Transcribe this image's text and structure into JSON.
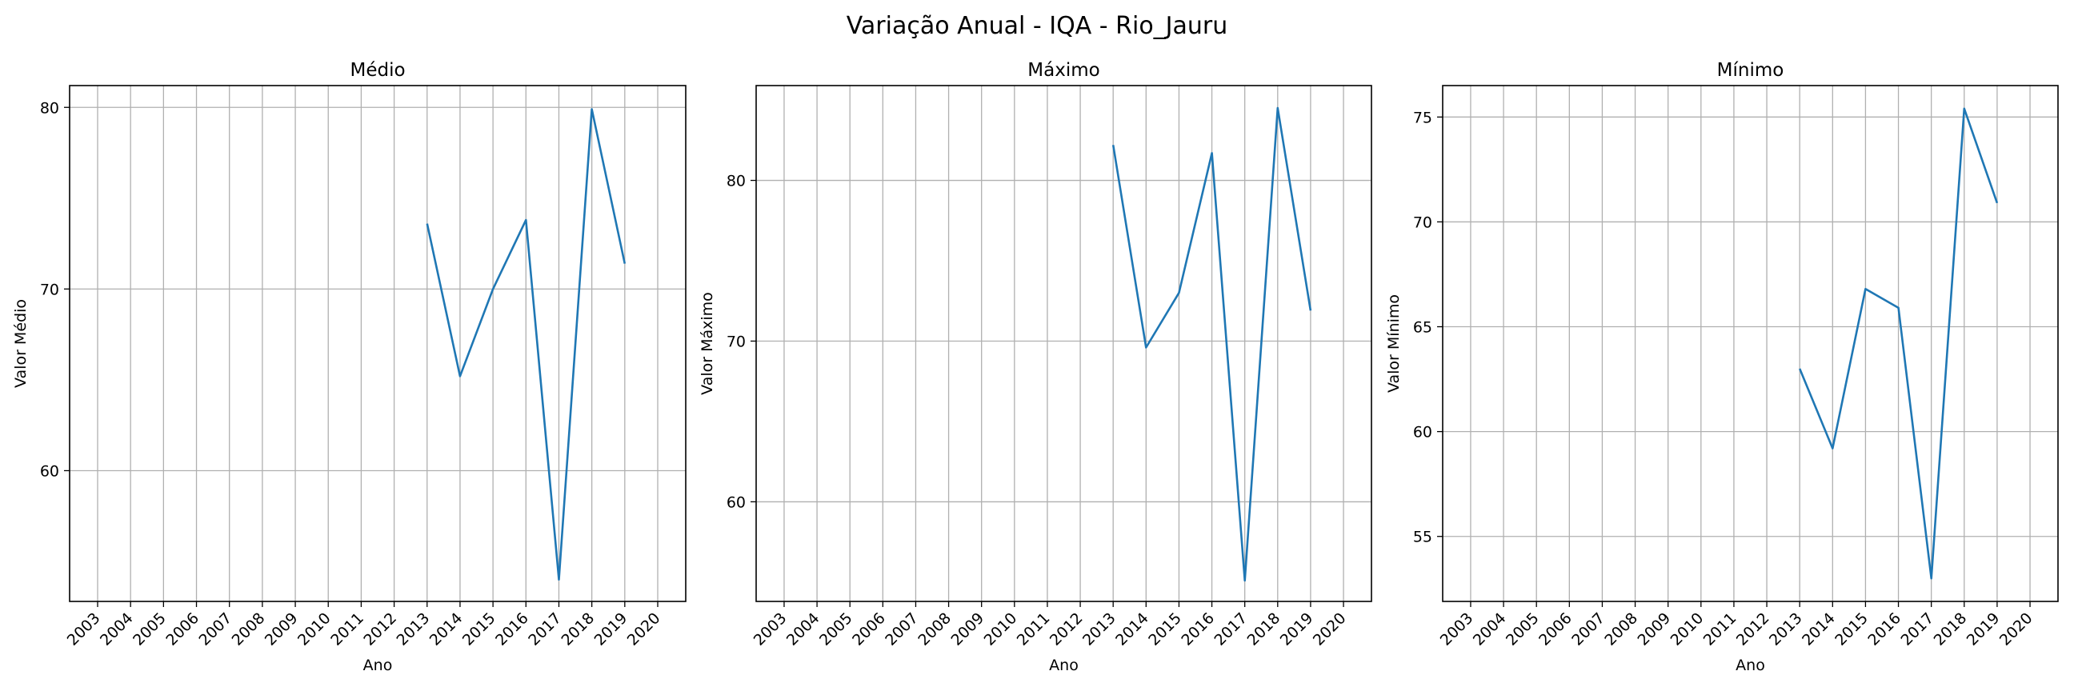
{
  "figure": {
    "title": "Variação Anual - IQA - Rio_Jauru"
  },
  "style": {
    "line_color": "#1f77b4",
    "grid_color": "#b0b0b0",
    "axes_color": "#000000"
  },
  "chart_data": [
    {
      "type": "line",
      "title": "Médio",
      "xlabel": "Ano",
      "ylabel": "Valor Médio",
      "categories": [
        "2003",
        "2004",
        "2005",
        "2006",
        "2007",
        "2008",
        "2009",
        "2010",
        "2011",
        "2012",
        "2013",
        "2014",
        "2015",
        "2016",
        "2017",
        "2018",
        "2019",
        "2020"
      ],
      "ylim": [
        52.8,
        81.2
      ],
      "yticks": [
        60,
        70,
        80
      ],
      "grid": true,
      "series": [
        {
          "x": [
            "2013",
            "2014",
            "2015",
            "2016",
            "2017",
            "2018",
            "2019"
          ],
          "values": [
            73.6,
            65.2,
            70.0,
            73.8,
            54.0,
            79.9,
            71.4
          ]
        }
      ]
    },
    {
      "type": "line",
      "title": "Máximo",
      "xlabel": "Ano",
      "ylabel": "Valor Máximo",
      "categories": [
        "2003",
        "2004",
        "2005",
        "2006",
        "2007",
        "2008",
        "2009",
        "2010",
        "2011",
        "2012",
        "2013",
        "2014",
        "2015",
        "2016",
        "2017",
        "2018",
        "2019",
        "2020"
      ],
      "ylim": [
        53.8,
        85.9
      ],
      "yticks": [
        60,
        70,
        80
      ],
      "grid": true,
      "series": [
        {
          "x": [
            "2013",
            "2014",
            "2015",
            "2016",
            "2017",
            "2018",
            "2019"
          ],
          "values": [
            82.2,
            69.6,
            73.0,
            81.7,
            55.1,
            84.5,
            71.9
          ]
        }
      ]
    },
    {
      "type": "line",
      "title": "Mínimo",
      "xlabel": "Ano",
      "ylabel": "Valor Mínimo",
      "categories": [
        "2003",
        "2004",
        "2005",
        "2006",
        "2007",
        "2008",
        "2009",
        "2010",
        "2011",
        "2012",
        "2013",
        "2014",
        "2015",
        "2016",
        "2017",
        "2018",
        "2019",
        "2020"
      ],
      "ylim": [
        51.9,
        76.5
      ],
      "yticks": [
        55,
        60,
        65,
        70,
        75
      ],
      "grid": true,
      "series": [
        {
          "x": [
            "2013",
            "2014",
            "2015",
            "2016",
            "2017",
            "2018",
            "2019"
          ],
          "values": [
            63.0,
            59.2,
            66.8,
            65.9,
            53.0,
            75.4,
            70.9
          ]
        }
      ]
    }
  ]
}
